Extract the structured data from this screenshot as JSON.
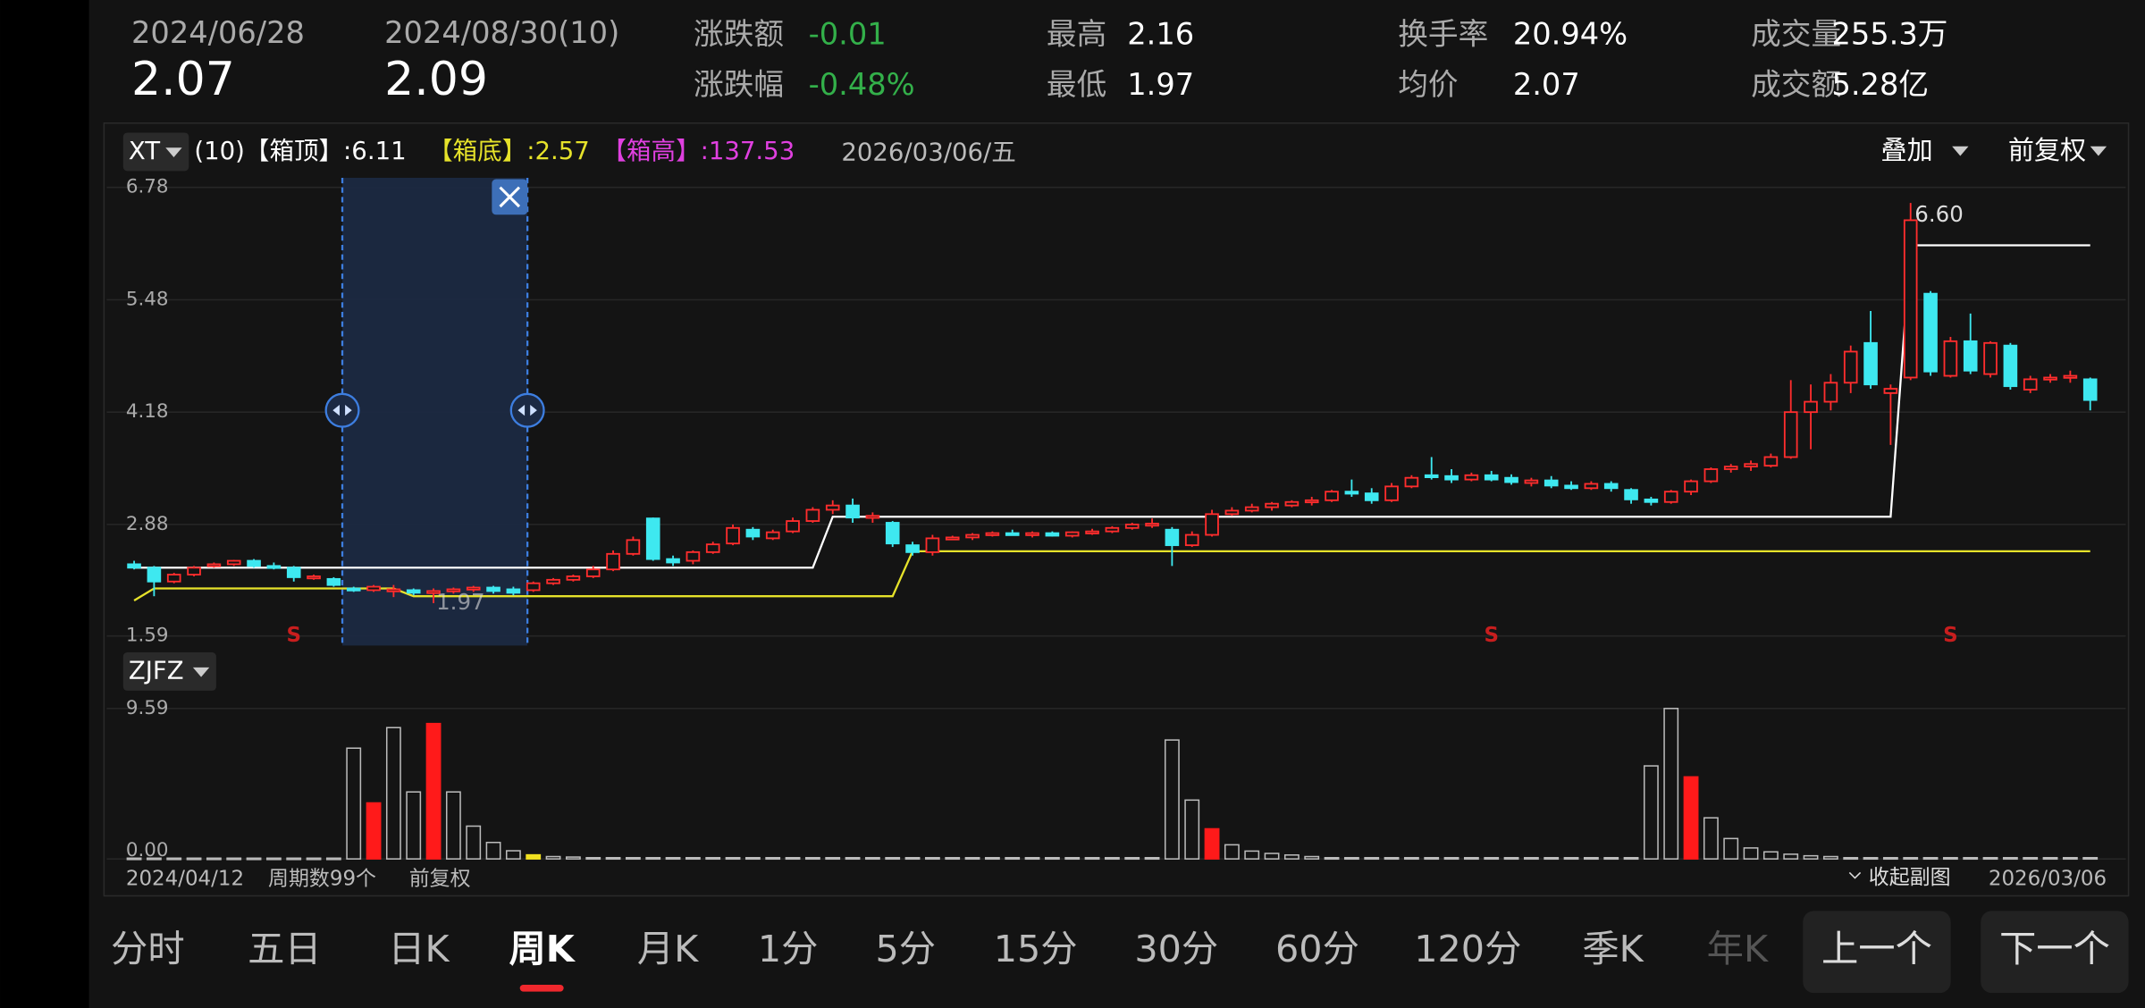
{
  "header": {
    "start_date": "2024/06/28",
    "start_price": "2.07",
    "end_date": "2024/08/30(10)",
    "end_price": "2.09",
    "stats": [
      {
        "label": "涨跌额",
        "value": "-0.01",
        "color": "#33b04a"
      },
      {
        "label": "涨跌幅",
        "value": "-0.48%",
        "color": "#33b04a"
      },
      {
        "label": "最高",
        "value": "2.16",
        "color": "#ffffff"
      },
      {
        "label": "最低",
        "value": "1.97",
        "color": "#ffffff"
      },
      {
        "label": "换手率",
        "value": "20.94%",
        "color": "#ffffff"
      },
      {
        "label": "均价",
        "value": "2.07",
        "color": "#ffffff"
      },
      {
        "label": "成交量",
        "value": "255.3万",
        "color": "#ffffff"
      },
      {
        "label": "成交额",
        "value": "5.28亿",
        "color": "#ffffff"
      }
    ]
  },
  "toolbar": {
    "indicator": "XT",
    "box_top": "(10)【箱顶】:6.11",
    "box_bottom": "【箱底】:2.57",
    "box_height": "【箱高】:137.53",
    "date": "2026/03/06/五",
    "overlay": "叠加",
    "adjust": "前复权",
    "sub_indicator": "ZJFZ"
  },
  "chart_data": [
    {
      "type": "candlestick",
      "ylim": [
        1.59,
        6.78
      ],
      "yticks": [
        6.78,
        5.48,
        4.18,
        2.88,
        1.59
      ],
      "up_color": "#ff2d2d",
      "down_color": "#3ee8f0",
      "candles": [
        [
          2.42,
          2.46,
          2.36,
          2.38
        ],
        [
          2.38,
          2.4,
          2.05,
          2.22
        ],
        [
          2.22,
          2.32,
          2.2,
          2.3
        ],
        [
          2.3,
          2.4,
          2.28,
          2.38
        ],
        [
          2.4,
          2.44,
          2.38,
          2.42
        ],
        [
          2.42,
          2.47,
          2.4,
          2.46
        ],
        [
          2.46,
          2.48,
          2.38,
          2.4
        ],
        [
          2.4,
          2.44,
          2.36,
          2.38
        ],
        [
          2.38,
          2.4,
          2.22,
          2.27
        ],
        [
          2.27,
          2.3,
          2.24,
          2.28
        ],
        [
          2.25,
          2.27,
          2.16,
          2.18
        ],
        [
          2.14,
          2.16,
          2.1,
          2.12
        ],
        [
          2.12,
          2.18,
          2.1,
          2.16
        ],
        [
          2.13,
          2.18,
          2.04,
          2.13
        ],
        [
          2.12,
          2.14,
          2.06,
          2.09
        ],
        [
          2.1,
          2.14,
          1.97,
          2.11
        ],
        [
          2.11,
          2.15,
          2.08,
          2.13
        ],
        [
          2.13,
          2.17,
          2.1,
          2.15
        ],
        [
          2.15,
          2.17,
          2.08,
          2.11
        ],
        [
          2.13,
          2.16,
          2.06,
          2.09
        ],
        [
          2.12,
          2.22,
          2.1,
          2.2
        ],
        [
          2.2,
          2.26,
          2.18,
          2.24
        ],
        [
          2.24,
          2.3,
          2.22,
          2.28
        ],
        [
          2.28,
          2.4,
          2.26,
          2.36
        ],
        [
          2.36,
          2.58,
          2.34,
          2.54
        ],
        [
          2.54,
          2.74,
          2.52,
          2.7
        ],
        [
          2.95,
          2.96,
          2.46,
          2.48
        ],
        [
          2.48,
          2.52,
          2.4,
          2.44
        ],
        [
          2.46,
          2.58,
          2.42,
          2.56
        ],
        [
          2.56,
          2.68,
          2.54,
          2.65
        ],
        [
          2.66,
          2.88,
          2.64,
          2.84
        ],
        [
          2.82,
          2.85,
          2.7,
          2.74
        ],
        [
          2.72,
          2.82,
          2.7,
          2.79
        ],
        [
          2.8,
          2.96,
          2.78,
          2.92
        ],
        [
          2.92,
          3.08,
          2.9,
          3.05
        ],
        [
          3.05,
          3.16,
          3.0,
          3.1
        ],
        [
          3.1,
          3.18,
          2.9,
          2.96
        ],
        [
          2.96,
          3.02,
          2.9,
          2.98
        ],
        [
          2.9,
          2.92,
          2.62,
          2.66
        ],
        [
          2.64,
          2.68,
          2.52,
          2.56
        ],
        [
          2.56,
          2.76,
          2.52,
          2.72
        ],
        [
          2.72,
          2.75,
          2.7,
          2.73
        ],
        [
          2.73,
          2.78,
          2.7,
          2.76
        ],
        [
          2.76,
          2.8,
          2.74,
          2.78
        ],
        [
          2.78,
          2.82,
          2.75,
          2.76
        ],
        [
          2.76,
          2.8,
          2.73,
          2.78
        ],
        [
          2.78,
          2.8,
          2.74,
          2.75
        ],
        [
          2.75,
          2.8,
          2.73,
          2.79
        ],
        [
          2.79,
          2.83,
          2.76,
          2.8
        ],
        [
          2.8,
          2.86,
          2.78,
          2.84
        ],
        [
          2.84,
          2.9,
          2.82,
          2.88
        ],
        [
          2.88,
          2.95,
          2.84,
          2.89
        ],
        [
          2.82,
          2.85,
          2.4,
          2.64
        ],
        [
          2.64,
          2.8,
          2.62,
          2.76
        ],
        [
          2.76,
          3.05,
          2.74,
          3.0
        ],
        [
          3.0,
          3.08,
          2.98,
          3.04
        ],
        [
          3.04,
          3.12,
          3.02,
          3.08
        ],
        [
          3.08,
          3.14,
          3.04,
          3.12
        ],
        [
          3.1,
          3.16,
          3.08,
          3.14
        ],
        [
          3.14,
          3.2,
          3.1,
          3.16
        ],
        [
          3.16,
          3.28,
          3.14,
          3.26
        ],
        [
          3.26,
          3.4,
          3.2,
          3.24
        ],
        [
          3.24,
          3.3,
          3.12,
          3.16
        ],
        [
          3.16,
          3.36,
          3.14,
          3.32
        ],
        [
          3.32,
          3.45,
          3.3,
          3.42
        ],
        [
          3.45,
          3.66,
          3.4,
          3.44
        ],
        [
          3.44,
          3.52,
          3.36,
          3.4
        ],
        [
          3.4,
          3.48,
          3.38,
          3.45
        ],
        [
          3.45,
          3.5,
          3.38,
          3.4
        ],
        [
          3.42,
          3.46,
          3.34,
          3.37
        ],
        [
          3.36,
          3.42,
          3.32,
          3.39
        ],
        [
          3.39,
          3.44,
          3.3,
          3.33
        ],
        [
          3.33,
          3.38,
          3.28,
          3.3
        ],
        [
          3.3,
          3.38,
          3.28,
          3.35
        ],
        [
          3.35,
          3.38,
          3.26,
          3.3
        ],
        [
          3.28,
          3.3,
          3.12,
          3.17
        ],
        [
          3.17,
          3.2,
          3.1,
          3.14
        ],
        [
          3.14,
          3.28,
          3.12,
          3.26
        ],
        [
          3.26,
          3.4,
          3.22,
          3.38
        ],
        [
          3.38,
          3.54,
          3.36,
          3.52
        ],
        [
          3.52,
          3.58,
          3.48,
          3.55
        ],
        [
          3.55,
          3.62,
          3.5,
          3.58
        ],
        [
          3.56,
          3.7,
          3.54,
          3.66
        ],
        [
          3.66,
          4.55,
          3.64,
          4.18
        ],
        [
          4.18,
          4.5,
          3.75,
          4.3
        ],
        [
          4.3,
          4.62,
          4.2,
          4.52
        ],
        [
          4.52,
          4.95,
          4.4,
          4.88
        ],
        [
          4.98,
          5.35,
          4.45,
          4.5
        ],
        [
          4.4,
          4.5,
          3.8,
          4.45
        ],
        [
          4.58,
          6.6,
          4.55,
          6.4
        ],
        [
          5.55,
          5.58,
          4.6,
          4.65
        ],
        [
          4.6,
          5.05,
          4.58,
          5.0
        ],
        [
          5.0,
          5.32,
          4.62,
          4.66
        ],
        [
          4.62,
          5.0,
          4.58,
          4.98
        ],
        [
          4.95,
          4.98,
          4.44,
          4.48
        ],
        [
          4.44,
          4.6,
          4.4,
          4.56
        ],
        [
          4.56,
          4.62,
          4.52,
          4.58
        ],
        [
          4.58,
          4.66,
          4.52,
          4.6
        ],
        [
          4.56,
          4.58,
          4.2,
          4.32
        ]
      ],
      "lines": [
        {
          "color": "#ffffff",
          "values": [
            2.38,
            2.38,
            2.38,
            2.38,
            2.38,
            2.38,
            2.38,
            2.38,
            2.38,
            2.38,
            2.38,
            2.38,
            2.38,
            2.38,
            2.38,
            2.38,
            2.38,
            2.38,
            2.38,
            2.38,
            2.38,
            2.38,
            2.38,
            2.38,
            2.38,
            2.38,
            2.38,
            2.38,
            2.38,
            2.38,
            2.38,
            2.38,
            2.38,
            2.38,
            2.38,
            2.97,
            2.97,
            2.97,
            2.97,
            2.97,
            2.97,
            2.97,
            2.97,
            2.97,
            2.97,
            2.97,
            2.97,
            2.97,
            2.97,
            2.97,
            2.97,
            2.97,
            2.97,
            2.97,
            2.97,
            2.97,
            2.97,
            2.97,
            2.97,
            2.97,
            2.97,
            2.97,
            2.97,
            2.97,
            2.97,
            2.97,
            2.97,
            2.97,
            2.97,
            2.97,
            2.97,
            2.97,
            2.97,
            2.97,
            2.97,
            2.97,
            2.97,
            2.97,
            2.97,
            2.97,
            2.97,
            2.97,
            2.97,
            2.97,
            2.97,
            2.97,
            2.97,
            2.97,
            2.97,
            6.11,
            6.11,
            6.11,
            6.11,
            6.11,
            6.11,
            6.11,
            6.11,
            6.11,
            6.11
          ]
        },
        {
          "color": "#e6e22a",
          "values": [
            2.0,
            2.14,
            2.14,
            2.14,
            2.14,
            2.14,
            2.14,
            2.14,
            2.14,
            2.14,
            2.14,
            2.14,
            2.14,
            2.14,
            2.05,
            2.05,
            2.05,
            2.05,
            2.05,
            2.05,
            2.05,
            2.05,
            2.05,
            2.05,
            2.05,
            2.05,
            2.05,
            2.05,
            2.05,
            2.05,
            2.05,
            2.05,
            2.05,
            2.05,
            2.05,
            2.05,
            2.05,
            2.05,
            2.05,
            2.57,
            2.57,
            2.57,
            2.57,
            2.57,
            2.57,
            2.57,
            2.57,
            2.57,
            2.57,
            2.57,
            2.57,
            2.57,
            2.57,
            2.57,
            2.57,
            2.57,
            2.57,
            2.57,
            2.57,
            2.57,
            2.57,
            2.57,
            2.57,
            2.57,
            2.57,
            2.57,
            2.57,
            2.57,
            2.57,
            2.57,
            2.57,
            2.57,
            2.57,
            2.57,
            2.57,
            2.57,
            2.57,
            2.57,
            2.57,
            2.57,
            2.57,
            2.57,
            2.57,
            2.57,
            2.57,
            2.57,
            2.57,
            2.57,
            2.57,
            2.57,
            2.57,
            2.57,
            2.57,
            2.57,
            2.57,
            2.57,
            2.57,
            2.57,
            2.57
          ]
        }
      ],
      "selection": {
        "start": 11,
        "end": 20
      },
      "signals": [
        {
          "x": 8,
          "label": "S"
        },
        {
          "x": 68,
          "label": "S"
        },
        {
          "x": 91,
          "label": "S"
        }
      ],
      "annotations": [
        {
          "x": 89,
          "y": 6.6,
          "label": "6.60"
        },
        {
          "x": 15,
          "y": 1.97,
          "label": "1.97"
        }
      ]
    },
    {
      "type": "bar",
      "ylim": [
        0,
        9.59
      ],
      "yticks": [
        9.59,
        {
          "value": 0,
          "label": "0.00"
        }
      ],
      "color": "#bbbbbb",
      "highlight": [
        {
          "x": 12,
          "color": "#ff1a1a"
        },
        {
          "x": 15,
          "color": "#ff1a1a"
        },
        {
          "x": 20,
          "color": "#f0e020"
        },
        {
          "x": 54,
          "color": "#ff1a1a"
        },
        {
          "x": 78,
          "color": "#ff1a1a"
        }
      ],
      "values": [
        0.05,
        0.05,
        0.05,
        0.05,
        0.05,
        0.05,
        0.05,
        0.05,
        0.05,
        0.05,
        0.05,
        7.06,
        3.57,
        8.37,
        4.27,
        8.63,
        4.27,
        2.09,
        1.05,
        0.52,
        0.26,
        0.15,
        0.12,
        0.08,
        0.08,
        0.08,
        0.08,
        0.08,
        0.08,
        0.08,
        0.08,
        0.08,
        0.08,
        0.08,
        0.08,
        0.08,
        0.08,
        0.08,
        0.08,
        0.08,
        0.08,
        0.08,
        0.08,
        0.08,
        0.08,
        0.08,
        0.08,
        0.08,
        0.08,
        0.08,
        0.08,
        0.08,
        7.58,
        3.75,
        1.92,
        0.9,
        0.5,
        0.35,
        0.25,
        0.15,
        0.08,
        0.08,
        0.08,
        0.08,
        0.08,
        0.08,
        0.08,
        0.08,
        0.08,
        0.08,
        0.08,
        0.08,
        0.08,
        0.08,
        0.08,
        0.08,
        5.93,
        9.59,
        5.23,
        2.62,
        1.3,
        0.7,
        0.45,
        0.3,
        0.2,
        0.15,
        0.08,
        0.08,
        0.08,
        0.08,
        0.08,
        0.08,
        0.08,
        0.08,
        0.08,
        0.08,
        0.08,
        0.08,
        0.08
      ],
      "footer": [
        "2024/04/12",
        "周期数99个",
        "前复权"
      ],
      "collapse": "收起副图",
      "end_date": "2026/03/06"
    }
  ],
  "tabs": [
    "分时",
    "五日",
    "日K",
    "周K",
    "月K",
    "1分",
    "5分",
    "15分",
    "30分",
    "60分",
    "120分",
    "季K",
    "年K"
  ],
  "active_tab": 3,
  "buttons": [
    "上一个",
    "下一个"
  ]
}
